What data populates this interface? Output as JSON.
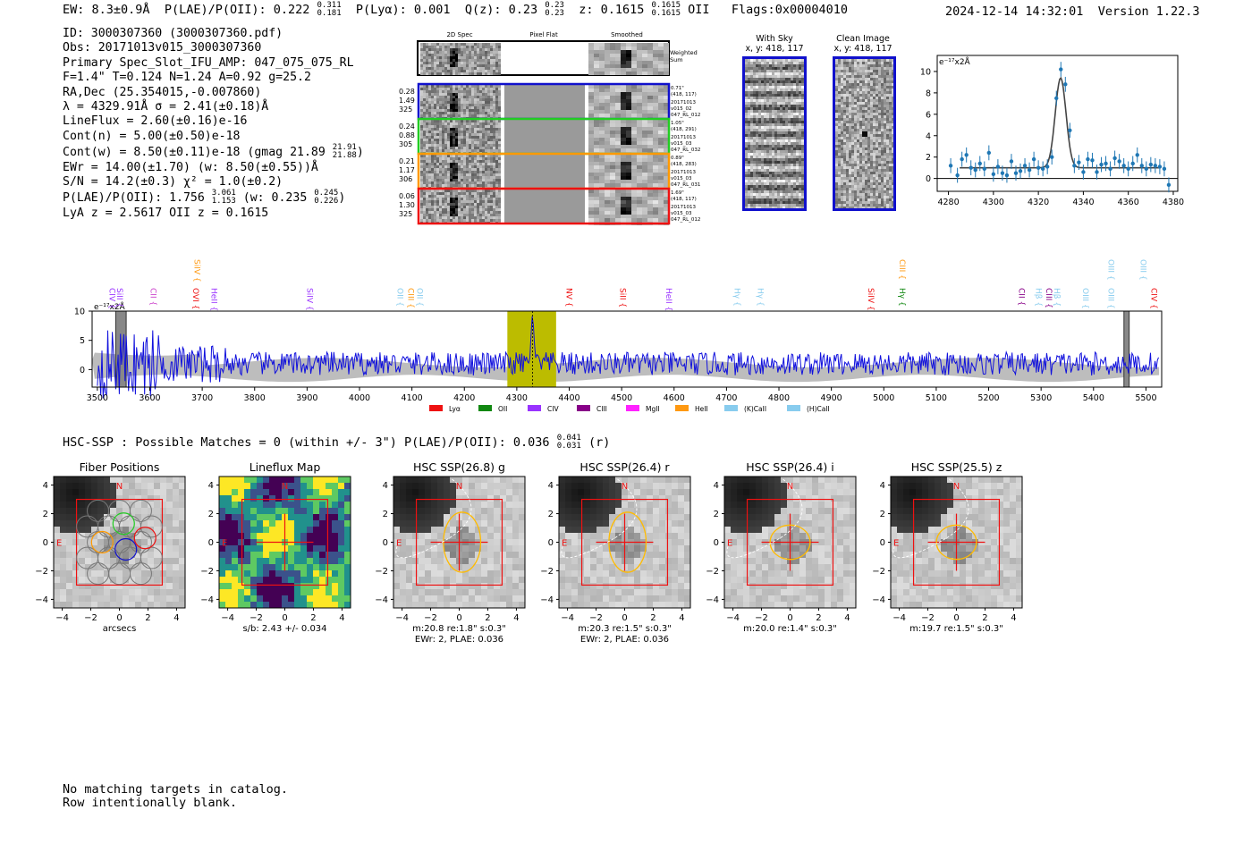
{
  "header": {
    "ew": "EW: 8.3±0.9Å",
    "plae": "P(LAE)/P(OII): 0.222",
    "plae_hi": "0.311",
    "plae_lo": "0.181",
    "plya": "P(Lyα): 0.001",
    "q": "Q(z): 0.23",
    "q_hi": "0.23",
    "q_lo": "0.23",
    "z": "z: 0.1615",
    "z_hi": "0.1615",
    "z_lo": "0.1615",
    "z_line": "OII",
    "flags": "Flags:0x00004010",
    "timestamp": "2024-12-14 14:32:01",
    "version": "Version 1.22.3"
  },
  "info": {
    "id": "ID: 3000307360 (3000307360.pdf)",
    "obs": "Obs: 20171013v015_3000307360",
    "primary": "Primary Spec_Slot_IFU_AMP: 047_075_075_RL",
    "fwhm": "F=1.4\"  T=0.124  N=1.24  A=0.92  g=25.2",
    "radec": "RA,Dec (25.354015,-0.007860)",
    "lambda": "λ = 4329.91Å  σ = 2.41(±0.18)Å",
    "lineflux": "LineFlux = 2.60(±0.16)e-16",
    "contn": "Cont(n) = 5.00(±0.50)e-18",
    "contw": "Cont(w) = 8.50(±0.11)e-18 (gmag 21.89",
    "gmag_hi": "21.91",
    "gmag_lo": "21.88",
    "ewr": "EWr = 14.00(±1.70) (w: 8.50(±0.55))Å",
    "sn": "S/N = 14.2(±0.3)  χ² = 1.0(±0.2)",
    "plae2": "P(LAE)/P(OII): 1.756",
    "plae2_hi": "3.061",
    "plae2_lo": "1.153",
    "plae2_w": "(w: 0.235",
    "plae2_w_hi": "0.245",
    "plae2_w_lo": "0.226",
    "lya_z": "LyA z = 2.5617   OII z = 0.1615"
  },
  "cutouts": {
    "col_2d": "2D Spec",
    "col_flat": "Pixel Flat",
    "col_smooth": "Smoothed",
    "weighted": "Weighted\nSum",
    "rows": [
      {
        "w1": "0.28",
        "w2": "1.49",
        "w3": "325",
        "color": "#1010cc",
        "d": "0.71\"",
        "xy": "(418, 117)",
        "s1": "20171013",
        "s2": "v015_02",
        "s3": "047_RL_012"
      },
      {
        "w1": "0.24",
        "w2": "0.88",
        "w3": "305",
        "color": "#22cc22",
        "d": "1.05\"",
        "xy": "(418, 291)",
        "s1": "20171013",
        "s2": "v015_03",
        "s3": "047_RL_032"
      },
      {
        "w1": "0.21",
        "w2": "1.17",
        "w3": "306",
        "color": "#ff9900",
        "d": "0.89\"",
        "xy": "(418, 283)",
        "s1": "20171013",
        "s2": "v015_03",
        "s3": "047_RL_031"
      },
      {
        "w1": "0.06",
        "w2": "1.30",
        "w3": "325",
        "color": "#ee1111",
        "d": "1.69\"",
        "xy": "(418, 117)",
        "s1": "20171013",
        "s2": "v015_03",
        "s3": "047_RL_012"
      }
    ],
    "with_sky": "With Sky",
    "clean": "Clean Image",
    "xy_label": "x, y: 418, 117"
  },
  "chart_data": [
    {
      "type": "line",
      "title": "",
      "ylabel": "e⁻¹⁷x2Å",
      "xlim": [
        4275,
        4382
      ],
      "ylim": [
        -1.2,
        11.5
      ],
      "xticks": [
        "4280",
        "4300",
        "4320",
        "4340",
        "4360",
        "4380"
      ],
      "yticks": [
        "0",
        "2",
        "4",
        "6",
        "8",
        "10"
      ],
      "data_x": [
        4281,
        4284,
        4286,
        4288,
        4290,
        4292,
        4294,
        4296,
        4298,
        4300,
        4302,
        4304,
        4306,
        4308,
        4310,
        4312,
        4314,
        4316,
        4318,
        4320,
        4322,
        4324,
        4326,
        4328,
        4330,
        4332,
        4334,
        4336,
        4338,
        4340,
        4342,
        4344,
        4346,
        4348,
        4350,
        4352,
        4354,
        4356,
        4358,
        4360,
        4362,
        4364,
        4366,
        4368,
        4370,
        4372,
        4374,
        4376,
        4378
      ],
      "data_y": [
        1.2,
        0.3,
        1.8,
        2.2,
        1.0,
        0.8,
        1.4,
        0.9,
        2.4,
        0.4,
        1.1,
        0.5,
        0.3,
        1.6,
        0.5,
        0.7,
        1.2,
        0.8,
        1.8,
        1.0,
        0.9,
        1.1,
        2.0,
        7.5,
        10.2,
        8.8,
        4.5,
        1.2,
        1.5,
        0.6,
        1.8,
        1.7,
        0.6,
        1.3,
        1.4,
        0.9,
        1.9,
        1.6,
        1.2,
        0.9,
        1.4,
        2.2,
        1.2,
        0.9,
        1.3,
        1.2,
        1.1,
        0.9,
        -0.6
      ],
      "fit_center": 4329.9,
      "fit_sigma": 2.4,
      "fit_amp": 8.4,
      "fit_base": 1.0
    },
    {
      "type": "line",
      "title": "",
      "ylabel": "e⁻¹⁷x2Å",
      "xlim": [
        3490,
        5530
      ],
      "ylim": [
        -3,
        10
      ],
      "xticks": [
        "3500",
        "3600",
        "3700",
        "3800",
        "3900",
        "4000",
        "4100",
        "4200",
        "4300",
        "4400",
        "4500",
        "4600",
        "4700",
        "4800",
        "4900",
        "5000",
        "5100",
        "5200",
        "5300",
        "5400",
        "5500"
      ],
      "yticks": [
        "0",
        "5",
        "10"
      ],
      "highlight_range": [
        4282,
        4375
      ],
      "emission_peak": 4330,
      "legend": [
        "Lyα",
        "OII",
        "CIV",
        "CIII",
        "MgII",
        "HeII",
        "(K)CaII",
        "(H)CaII"
      ],
      "legend_colors": [
        "#ee1111",
        "#118811",
        "#9933ff",
        "#880088",
        "#ff22ff",
        "#ff9911",
        "#88ccee",
        "#88ccee"
      ],
      "line_labels": [
        {
          "t": "CIV",
          "x": 3518,
          "c": "#9933ff",
          "row": 2
        },
        {
          "t": "SiII",
          "x": 3533,
          "c": "#9933ff",
          "row": 2
        },
        {
          "t": "CII",
          "x": 3597,
          "c": "#cc44cc",
          "row": 2
        },
        {
          "t": "SiIV",
          "x": 3680,
          "c": "#ff9911",
          "row": 1
        },
        {
          "t": "OVI",
          "x": 3678,
          "c": "#ee1111",
          "row": 2
        },
        {
          "t": "HeII",
          "x": 3713,
          "c": "#9933ff",
          "row": 2
        },
        {
          "t": "SiIV",
          "x": 3895,
          "c": "#9933ff",
          "row": 2
        },
        {
          "t": "OII",
          "x": 4067,
          "c": "#88ccee",
          "row": 2
        },
        {
          "t": "CIII",
          "x": 4088,
          "c": "#ff9911",
          "row": 2
        },
        {
          "t": "OII",
          "x": 4105,
          "c": "#88ccee",
          "row": 2
        },
        {
          "t": "NV",
          "x": 4390,
          "c": "#ee1111",
          "row": 2
        },
        {
          "t": "SiII",
          "x": 4492,
          "c": "#ee1111",
          "row": 2
        },
        {
          "t": "HeII",
          "x": 4580,
          "c": "#9933ff",
          "row": 2
        },
        {
          "t": "Hγ",
          "x": 4710,
          "c": "#88ccee",
          "row": 2
        },
        {
          "t": "Hγ",
          "x": 4755,
          "c": "#88ccee",
          "row": 2
        },
        {
          "t": "SiIV",
          "x": 4965,
          "c": "#ee1111",
          "row": 2
        },
        {
          "t": "CIII",
          "x": 5025,
          "c": "#ff9911",
          "row": 1
        },
        {
          "t": "Hγ",
          "x": 5025,
          "c": "#118811",
          "row": 2
        },
        {
          "t": "CII",
          "x": 5253,
          "c": "#880088",
          "row": 2
        },
        {
          "t": "Hβ",
          "x": 5285,
          "c": "#88ccee",
          "row": 2
        },
        {
          "t": "CIII",
          "x": 5305,
          "c": "#880088",
          "row": 2
        },
        {
          "t": "Hβ",
          "x": 5320,
          "c": "#88ccee",
          "row": 2
        },
        {
          "t": "OIII",
          "x": 5375,
          "c": "#88ccee",
          "row": 2
        },
        {
          "t": "OIII",
          "x": 5423,
          "c": "#88ccee",
          "row": 1
        },
        {
          "t": "OIII",
          "x": 5423,
          "c": "#88ccee",
          "row": 2
        },
        {
          "t": "OIII",
          "x": 5485,
          "c": "#88ccee",
          "row": 1
        },
        {
          "t": "CIV",
          "x": 5505,
          "c": "#ee1111",
          "row": 2
        }
      ]
    }
  ],
  "hsc": {
    "summary": "HSC-SSP : Possible Matches = 0 (within +/- 3\")  P(LAE)/P(OII): 0.036",
    "summary_hi": "0.041",
    "summary_lo": "0.031",
    "summary_band": "(r)",
    "panels": [
      {
        "title": "Fiber Positions",
        "line1": "arcsecs",
        "line2": ""
      },
      {
        "title": "Lineflux Map",
        "line1": "s/b: 2.43 +/- 0.034",
        "line2": ""
      },
      {
        "title": "HSC SSP(26.8) g",
        "line1": "m:20.8  re:1.8\"  s:0.3\"",
        "line2": "EWr: 2, PLAE: 0.036"
      },
      {
        "title": "HSC SSP(26.4) r",
        "line1": "m:20.3  re:1.5\"  s:0.3\"",
        "line2": "EWr: 2, PLAE: 0.036"
      },
      {
        "title": "HSC SSP(26.4) i",
        "line1": "m:20.0  re:1.4\"  s:0.3\"",
        "line2": ""
      },
      {
        "title": "HSC SSP(25.5) z",
        "line1": "m:19.7  re:1.5\"  s:0.3\"",
        "line2": ""
      }
    ],
    "tick_labels": [
      "−4",
      "−2",
      "0",
      "2",
      "4"
    ],
    "north": "N",
    "east": "E"
  },
  "footer": {
    "line1": "No matching targets in catalog.",
    "line2": "Row intentionally blank."
  }
}
